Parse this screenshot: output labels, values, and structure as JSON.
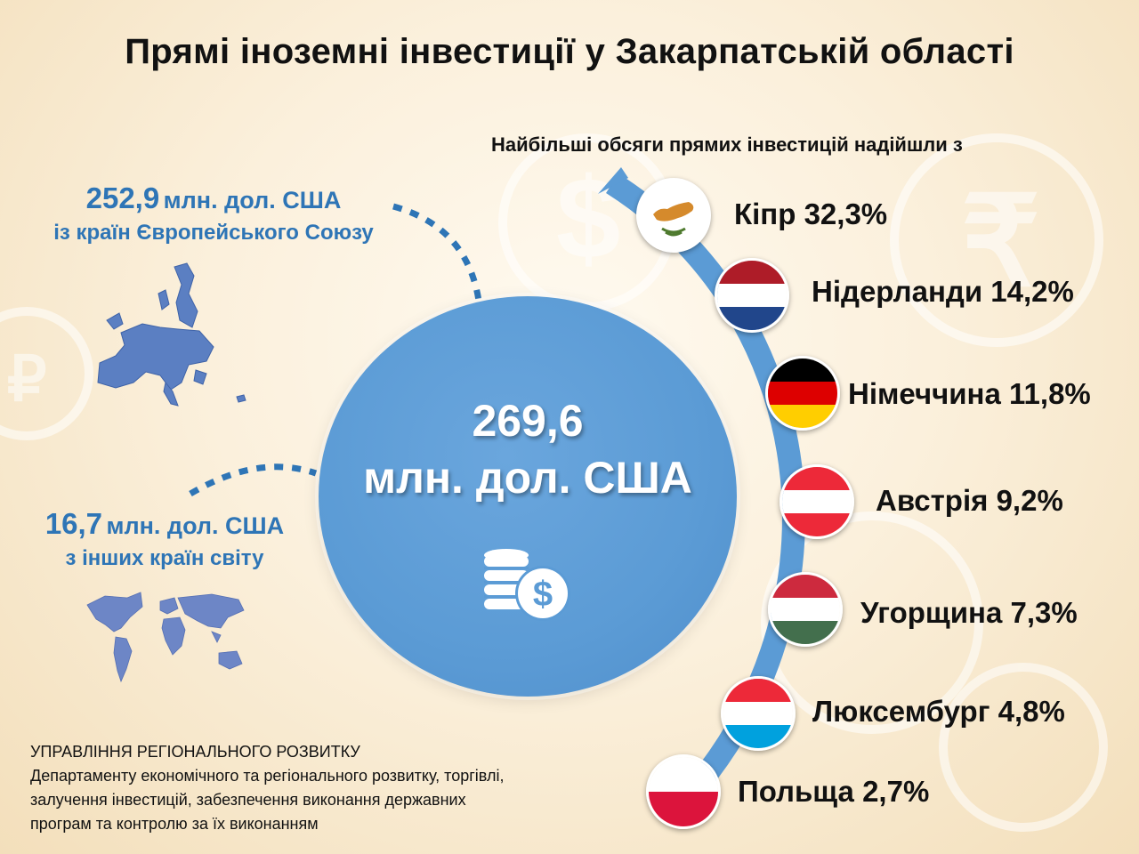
{
  "title": "Прямі іноземні інвестиції у Закарпатській області",
  "subtitle": "Найбільші обсяги прямих інвестицій надійшли з",
  "eu": {
    "amount": "252,9",
    "unit": "млн. дол. США",
    "desc": "із країн Європейського Союзу"
  },
  "other": {
    "amount": "16,7",
    "unit": "млн. дол. США",
    "desc": "з інших країн світу"
  },
  "total": {
    "amount": "269,6",
    "unit": "млн. дол. США"
  },
  "countries": [
    {
      "name": "Кіпр",
      "share": "32,3%",
      "flag": "cyprus-flag-icon"
    },
    {
      "name": "Нідерланди",
      "share": "14,2%",
      "flag": "netherlands-flag-icon"
    },
    {
      "name": "Німеччина",
      "share": "11,8%",
      "flag": "germany-flag-icon"
    },
    {
      "name": "Австрія",
      "share": "9,2%",
      "flag": "austria-flag-icon"
    },
    {
      "name": "Угорщина",
      "share": "7,3%",
      "flag": "hungary-flag-icon"
    },
    {
      "name": "Люксембург",
      "share": "4,8%",
      "flag": "luxembourg-flag-icon"
    },
    {
      "name": "Польща",
      "share": "2,7%",
      "flag": "poland-flag-icon"
    }
  ],
  "footer": {
    "line1": "УПРАВЛІННЯ РЕГІОНАЛЬНОГО РОЗВИТКУ",
    "line2": "Департаменту економічного та регіонального розвитку, торгівлі,",
    "line3": "залучення інвестицій, забезпечення виконання державних",
    "line4": "програм та контролю за їх виконанням"
  },
  "colors": {
    "accent": "#2e75b6",
    "circle": "#5b9bd5",
    "arc": "#5b9bd5"
  },
  "icons": {
    "coins": "coins-dollar-icon",
    "eu_map": "eu-map-icon",
    "world_map": "world-map-icon"
  }
}
